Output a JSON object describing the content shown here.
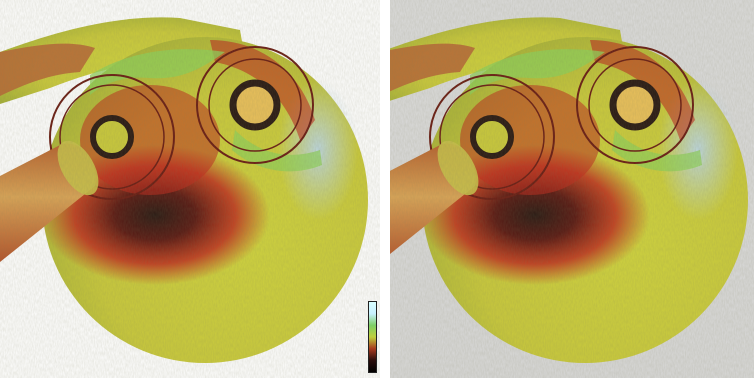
{
  "colors": {
    "left_background": "#ffffff",
    "right_background": "#d9d9d9",
    "yellow": "#c9c93c",
    "green": "#8fd15a",
    "red": "#c02a1e",
    "dark": "#2a1a14",
    "light_blue": "#bcd7e6"
  },
  "legend": {
    "gradient": [
      "#d9ffff",
      "#c8f0ff",
      "#7dcf65",
      "#bfcf3c",
      "#a73a1f",
      "#2a0d0b",
      "#000000"
    ]
  },
  "panels": [
    {
      "name": "left",
      "background_key": "left_background"
    },
    {
      "name": "right",
      "background_key": "right_background"
    }
  ]
}
